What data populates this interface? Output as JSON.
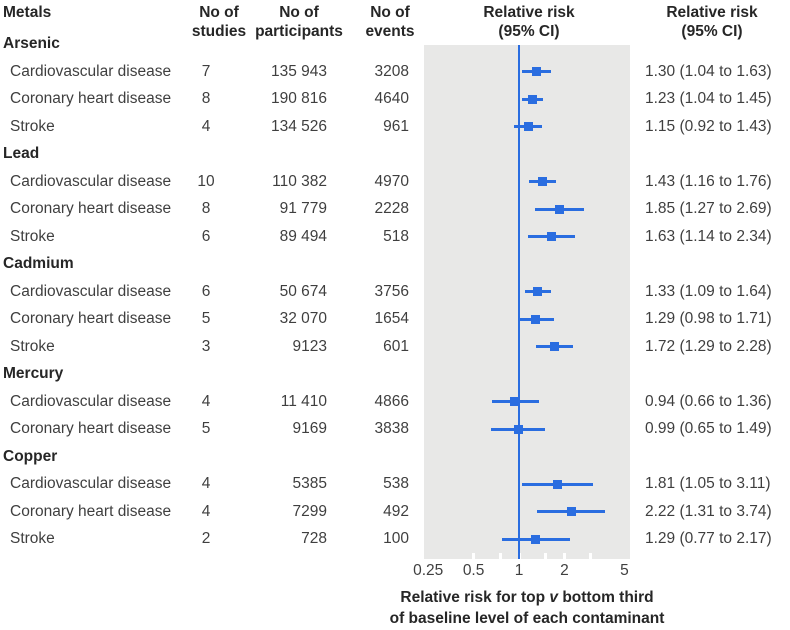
{
  "table": {
    "columns": {
      "metals": "Metals",
      "studies": "No of\nstudies",
      "participants": "No of\nparticipants",
      "events": "No of\nevents",
      "plot": "Relative risk\n(95% CI)",
      "estimates": "Relative risk\n(95% CI)"
    }
  },
  "chart_data": {
    "type": "scatter",
    "subtype": "forest-plot",
    "x_scale": "log",
    "x_ticks": [
      "0.25",
      "0.5",
      "1",
      "2",
      "5"
    ],
    "x_tick_values": [
      0.25,
      0.5,
      1,
      2,
      5
    ],
    "minor_tick_values": [
      0.5,
      0.75,
      1,
      1.5,
      2,
      3
    ],
    "x_range": [
      0.25,
      5
    ],
    "reference_line": 1,
    "xlabel_line1_pre_italic": "Relative risk for top ",
    "xlabel_italic": "v",
    "xlabel_line1_post_italic": " bottom third",
    "xlabel_line2": "of baseline level of each contaminant",
    "marker_color": "#2a6de0",
    "plot_background_color": "#e8e8e7",
    "groups": [
      {
        "metal": "Arsenic",
        "rows": [
          {
            "outcome": "Cardiovascular disease",
            "studies": "7",
            "participants": "135 943",
            "events": "3208",
            "rr": 1.3,
            "ci_low": 1.04,
            "ci_high": 1.63,
            "estimate_text": "1.30 (1.04 to 1.63)"
          },
          {
            "outcome": "Coronary heart disease",
            "studies": "8",
            "participants": "190 816",
            "events": "4640",
            "rr": 1.23,
            "ci_low": 1.04,
            "ci_high": 1.45,
            "estimate_text": "1.23 (1.04 to 1.45)"
          },
          {
            "outcome": "Stroke",
            "studies": "4",
            "participants": "134 526",
            "events": "961",
            "rr": 1.15,
            "ci_low": 0.92,
            "ci_high": 1.43,
            "estimate_text": "1.15 (0.92 to 1.43)"
          }
        ]
      },
      {
        "metal": "Lead",
        "rows": [
          {
            "outcome": "Cardiovascular disease",
            "studies": "10",
            "participants": "110 382",
            "events": "4970",
            "rr": 1.43,
            "ci_low": 1.16,
            "ci_high": 1.76,
            "estimate_text": "1.43 (1.16 to 1.76)"
          },
          {
            "outcome": "Coronary heart disease",
            "studies": "8",
            "participants": "91 779",
            "events": "2228",
            "rr": 1.85,
            "ci_low": 1.27,
            "ci_high": 2.69,
            "estimate_text": "1.85 (1.27 to 2.69)"
          },
          {
            "outcome": "Stroke",
            "studies": "6",
            "participants": "89 494",
            "events": "518",
            "rr": 1.63,
            "ci_low": 1.14,
            "ci_high": 2.34,
            "estimate_text": "1.63 (1.14 to 2.34)"
          }
        ]
      },
      {
        "metal": "Cadmium",
        "rows": [
          {
            "outcome": "Cardiovascular disease",
            "studies": "6",
            "participants": "50 674",
            "events": "3756",
            "rr": 1.33,
            "ci_low": 1.09,
            "ci_high": 1.64,
            "estimate_text": "1.33 (1.09 to 1.64)"
          },
          {
            "outcome": "Coronary heart disease",
            "studies": "5",
            "participants": "32 070",
            "events": "1654",
            "rr": 1.29,
            "ci_low": 0.98,
            "ci_high": 1.71,
            "estimate_text": "1.29 (0.98 to 1.71)"
          },
          {
            "outcome": "Stroke",
            "studies": "3",
            "participants": "9123",
            "events": "601",
            "rr": 1.72,
            "ci_low": 1.29,
            "ci_high": 2.28,
            "estimate_text": "1.72 (1.29 to 2.28)"
          }
        ]
      },
      {
        "metal": "Mercury",
        "rows": [
          {
            "outcome": "Cardiovascular disease",
            "studies": "4",
            "participants": "11 410",
            "events": "4866",
            "rr": 0.94,
            "ci_low": 0.66,
            "ci_high": 1.36,
            "estimate_text": "0.94 (0.66 to 1.36)"
          },
          {
            "outcome": "Coronary heart disease",
            "studies": "5",
            "participants": "9169",
            "events": "3838",
            "rr": 0.99,
            "ci_low": 0.65,
            "ci_high": 1.49,
            "estimate_text": "0.99 (0.65 to 1.49)"
          }
        ]
      },
      {
        "metal": "Copper",
        "rows": [
          {
            "outcome": "Cardiovascular disease",
            "studies": "4",
            "participants": "5385",
            "events": "538",
            "rr": 1.81,
            "ci_low": 1.05,
            "ci_high": 3.11,
            "estimate_text": "1.81 (1.05 to 3.11)"
          },
          {
            "outcome": "Coronary heart disease",
            "studies": "4",
            "participants": "7299",
            "events": "492",
            "rr": 2.22,
            "ci_low": 1.31,
            "ci_high": 3.74,
            "estimate_text": "2.22 (1.31 to 3.74)"
          },
          {
            "outcome": "Stroke",
            "studies": "2",
            "participants": "728",
            "events": "100",
            "rr": 1.29,
            "ci_low": 0.77,
            "ci_high": 2.17,
            "estimate_text": "1.29 (0.77 to 2.17)"
          }
        ]
      }
    ]
  }
}
